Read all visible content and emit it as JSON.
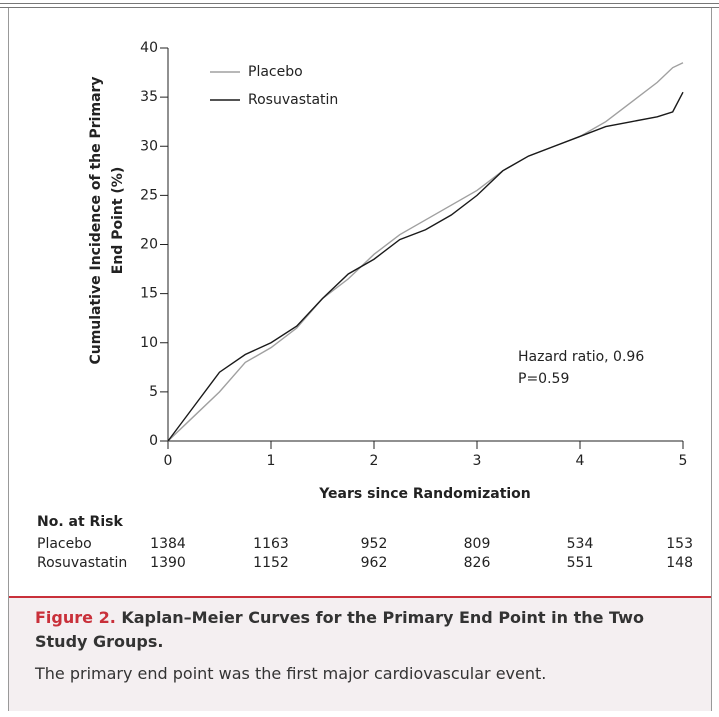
{
  "chart_data": {
    "type": "line",
    "ylabel": [
      "Cumulative Incidence of the Primary",
      "End Point (%)"
    ],
    "xlabel": "Years since Randomization",
    "x": [
      0,
      0.25,
      0.5,
      0.75,
      1,
      1.25,
      1.5,
      1.75,
      2,
      2.25,
      2.5,
      2.75,
      3,
      3.25,
      3.5,
      3.75,
      4,
      4.25,
      4.5,
      4.75,
      4.9,
      5
    ],
    "series": [
      {
        "name": "Placebo",
        "color": "#a0a0a0",
        "values": [
          0,
          2.5,
          5,
          8,
          9.5,
          11.5,
          14.5,
          16.5,
          19,
          21,
          22.5,
          24,
          25.5,
          27.5,
          29,
          30,
          31,
          32.5,
          34.5,
          36.5,
          38,
          38.5
        ]
      },
      {
        "name": "Rosuvastatin",
        "color": "#1a1a1a",
        "values": [
          0,
          3.5,
          7,
          8.8,
          10,
          11.7,
          14.5,
          17,
          18.5,
          20.5,
          21.5,
          23,
          25,
          27.5,
          29,
          30,
          31,
          32,
          32.5,
          33,
          33.5,
          35.5
        ]
      }
    ],
    "xlim": [
      0,
      5
    ],
    "xticks": [
      0,
      1,
      2,
      3,
      4,
      5
    ],
    "ylim": [
      0,
      40
    ],
    "yticks": [
      0,
      5,
      10,
      15,
      20,
      25,
      30,
      35,
      40
    ],
    "annotations": [
      "Hazard ratio, 0.96",
      "P=0.59"
    ]
  },
  "risk_table": {
    "title": "No. at Risk",
    "rows": [
      {
        "label": "Placebo",
        "values": [
          1384,
          1163,
          952,
          809,
          534,
          153
        ]
      },
      {
        "label": "Rosuvastatin",
        "values": [
          1390,
          1152,
          962,
          826,
          551,
          148
        ]
      }
    ]
  },
  "caption": {
    "label": "Figure 2.",
    "title": "Kaplan–Meier Curves for the Primary End Point in the Two Study Groups.",
    "body": "The primary end point was the first major cardiovascular event."
  }
}
